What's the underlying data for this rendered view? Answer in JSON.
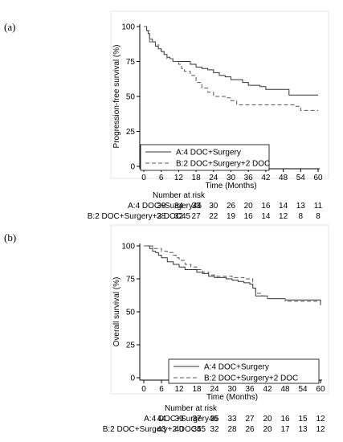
{
  "panels": [
    {
      "label": "(a)",
      "ylabel": "Progression-free survival (%)",
      "xlabel": "Time (Months)",
      "yticks": [
        0,
        25,
        50,
        75,
        100
      ],
      "xticks": [
        0,
        6,
        12,
        18,
        24,
        30,
        36,
        42,
        48,
        54,
        60
      ],
      "risk_title": "Number at risk",
      "risk_rows": [
        {
          "label": "A:4 DOC+Surgery",
          "values": [
            46,
            39,
            34,
            33,
            30,
            26,
            20,
            16,
            14,
            13,
            11
          ]
        },
        {
          "label": "B:2 DOC+Surgery+2 DOC",
          "values": [
            45,
            38,
            32,
            27,
            22,
            19,
            16,
            14,
            12,
            8,
            8
          ]
        }
      ]
    },
    {
      "label": "(b)",
      "ylabel": "Overall survival (%)",
      "xlabel": "Time (Months)",
      "yticks": [
        0,
        25,
        50,
        75,
        100
      ],
      "xticks": [
        0,
        6,
        12,
        18,
        24,
        30,
        36,
        42,
        48,
        54,
        60
      ],
      "risk_title": "Number at risk",
      "risk_rows": [
        {
          "label": "A:4 DOC+Surgery",
          "values": [
            46,
            44,
            39,
            37,
            35,
            33,
            27,
            20,
            16,
            15,
            12
          ]
        },
        {
          "label": "B:2 DOC+Surgery+2 DOC",
          "values": [
            45,
            43,
            40,
            35,
            32,
            28,
            26,
            20,
            17,
            13,
            12
          ]
        }
      ]
    }
  ],
  "chart_data": [
    {
      "type": "line",
      "title": "",
      "xlabel": "Time (Months)",
      "ylabel": "Progression-free survival (%)",
      "xlim": [
        0,
        60
      ],
      "ylim": [
        0,
        100
      ],
      "legend": "bottom-left",
      "series": [
        {
          "name": "A:4 DOC+Surgery",
          "style": "solid",
          "color": "#333333",
          "x": [
            0,
            1,
            1.5,
            2,
            3,
            4,
            5,
            6,
            7,
            8,
            9,
            10,
            12,
            16,
            18,
            20,
            22,
            24,
            26,
            28,
            30,
            34,
            36,
            40,
            42,
            50,
            54,
            60
          ],
          "y": [
            100,
            97,
            95,
            91,
            89,
            86,
            84,
            82,
            80,
            78,
            77,
            75,
            75,
            73,
            71,
            70,
            69,
            67,
            65,
            64,
            62,
            60,
            58,
            57,
            55,
            51,
            51,
            51
          ]
        },
        {
          "name": "B:2 DOC+Surgery+2 DOC",
          "style": "dashed",
          "color": "#555555",
          "x": [
            0,
            1,
            2,
            3,
            4,
            5,
            6,
            7,
            8,
            10,
            12,
            13,
            14,
            16,
            18,
            20,
            22,
            24,
            28,
            30,
            32,
            36,
            40,
            48,
            50,
            52,
            54,
            60
          ],
          "y": [
            100,
            97,
            89,
            89,
            87,
            84,
            82,
            80,
            77,
            75,
            73,
            70,
            68,
            65,
            60,
            56,
            53,
            50,
            49,
            47,
            44,
            44,
            44,
            44,
            44,
            43,
            40,
            40
          ]
        }
      ]
    },
    {
      "type": "line",
      "title": "",
      "xlabel": "Time (Months)",
      "ylabel": "Overall survival (%)",
      "xlim": [
        0,
        60
      ],
      "ylim": [
        0,
        100
      ],
      "legend": "bottom-center",
      "series": [
        {
          "name": "A:4 DOC+Surgery",
          "style": "solid",
          "color": "#333333",
          "x": [
            0,
            2,
            3,
            4,
            5,
            6,
            8,
            10,
            12,
            14,
            18,
            20,
            22,
            24,
            28,
            30,
            32,
            34,
            36,
            37,
            38,
            42,
            44,
            48,
            60,
            60
          ],
          "y": [
            100,
            98,
            96,
            95,
            93,
            91,
            88,
            86,
            84,
            82,
            80,
            79,
            77,
            76,
            75,
            74,
            73,
            72,
            71,
            68,
            62,
            60,
            60,
            59,
            59,
            55
          ]
        },
        {
          "name": "B:2 DOC+Surgery+2 DOC",
          "style": "dashed",
          "color": "#555555",
          "x": [
            0,
            3,
            6,
            8,
            10,
            11,
            12,
            14,
            16,
            18,
            20,
            22,
            24,
            26,
            30,
            34,
            36,
            37,
            38,
            40,
            42,
            46,
            48,
            60
          ],
          "y": [
            100,
            98,
            96,
            95,
            93,
            91,
            89,
            86,
            84,
            82,
            80,
            78,
            77,
            77,
            76,
            75,
            75,
            68,
            64,
            62,
            60,
            60,
            58,
            58
          ]
        }
      ]
    }
  ]
}
